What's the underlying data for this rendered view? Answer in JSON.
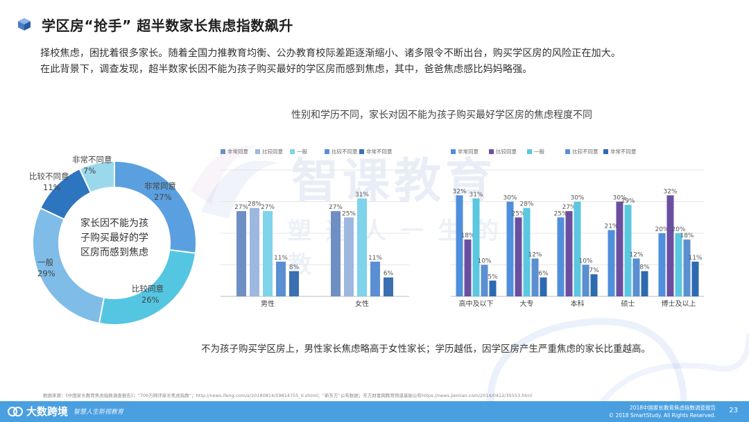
{
  "header": {
    "title": "学区房“抢手” 超半数家长焦虑指数飙升"
  },
  "intro": {
    "line1": "择校焦虑，困扰着很多家长。随着全国力推教育均衡、公办教育校际差距逐渐缩小、诸多限令不断出台，购买学区房的风险正在加大。",
    "line2": "在此背景下，调查发现，超半数家长因不能为孩子购买最好的学区房而感到焦虑，其中，爸爸焦虑感比妈妈略强。"
  },
  "watermark": {
    "main": "智课教育",
    "sub": "塑造人一生的教"
  },
  "donut": {
    "center_text": "家长因不能为孩子购买最好的学区房而感到焦虑",
    "labels": [
      {
        "name": "非常同意",
        "value": "27%"
      },
      {
        "name": "比较同意",
        "value": "26%"
      },
      {
        "name": "一般",
        "value": "29%"
      },
      {
        "name": "比较不同意",
        "value": "11%"
      },
      {
        "name": "非常不同意",
        "value": "7%"
      }
    ]
  },
  "chart_title": "性别和学历不同，家长对因不能为孩子购买最好学区房的焦虑程度不同",
  "colors": {
    "very_agree": "#6e8fc4",
    "agree": "#9db7df",
    "neutral": "#7fd3ea",
    "disagree": "#5b8fd4",
    "very_disagree": "#3a6fb0",
    "edu_very_agree": "#4f8fdc",
    "edu_agree": "#6a4fa0",
    "edu_neutral": "#5bc7e0",
    "edu_disagree": "#5a8fd0",
    "edu_very_disagree": "#2e6ab0",
    "donut_very_agree": "#5aa0e0",
    "donut_agree": "#54c6e2",
    "donut_neutral": "#7fbce8",
    "donut_disagree": "#2e75bf",
    "donut_very_disagree": "#9ad9ec",
    "footer": "#4a9fe0"
  },
  "chart_data": [
    {
      "type": "pie",
      "categories": [
        "非常同意",
        "比较同意",
        "一般",
        "比较不同意",
        "非常不同意"
      ],
      "values": [
        27,
        26,
        29,
        11,
        7
      ]
    },
    {
      "type": "bar",
      "categories": [
        "男性",
        "女性"
      ],
      "series": [
        {
          "name": "非常同意",
          "values": [
            27,
            27
          ]
        },
        {
          "name": "比较同意",
          "values": [
            28,
            25
          ]
        },
        {
          "name": "一般",
          "values": [
            27,
            31
          ]
        },
        {
          "name": "比较不同意",
          "values": [
            11,
            11
          ]
        },
        {
          "name": "非常不同意",
          "values": [
            8,
            6
          ]
        }
      ],
      "value_labels": [
        [
          "27%",
          "27%"
        ],
        [
          "28%",
          "25%"
        ],
        [
          "27%",
          "31%"
        ],
        [
          "11%",
          "11%"
        ],
        [
          "8%",
          "6%"
        ]
      ],
      "ylim": [
        0,
        40
      ]
    },
    {
      "type": "bar",
      "categories": [
        "高中及以下",
        "大专",
        "本科",
        "硕士",
        "博士及以上"
      ],
      "series": [
        {
          "name": "非常同意",
          "values": [
            32,
            30,
            25,
            21,
            20
          ]
        },
        {
          "name": "比较同意",
          "values": [
            18,
            25,
            27,
            30,
            32
          ]
        },
        {
          "name": "一般",
          "values": [
            31,
            28,
            30,
            29,
            20
          ]
        },
        {
          "name": "比较不同意",
          "values": [
            10,
            12,
            10,
            12,
            18
          ]
        },
        {
          "name": "非常不同意",
          "values": [
            5,
            6,
            7,
            8,
            11
          ]
        }
      ],
      "value_labels": [
        [
          "32%",
          "30%",
          "25%",
          "21%",
          "20%"
        ],
        [
          "18%",
          "25%",
          "27%",
          "30%",
          "32%"
        ],
        [
          "31%",
          "28%",
          "30%",
          "29%",
          "20%"
        ],
        [
          "10%",
          "12%",
          "10%",
          "12%",
          "18%"
        ],
        [
          "5%",
          "6%",
          "7%",
          "8%",
          "11%"
        ]
      ],
      "ylim": [
        0,
        40
      ]
    }
  ],
  "conclusion": "不为孩子购买学区房上，男性家长焦虑略高于女性家长；学历越低，因学区房产生严重焦虑的家长比重越高。",
  "source": "数据来源：《中国家长教育焦虑指数调查报告》；“700万网评家长焦虑指数”；http://news.ifeng.com/a/20180814/59814755_0.shtml；“新东方”公布数据；东方财富网教育频道基础公布https://news.jiemian.com/2014/0412/35553.html",
  "footer": {
    "brand": "大数跨境",
    "tag": "智慧人生新视教育",
    "report_line1": "2018中国家长教育焦虑指数调查报告",
    "report_line2": "© 2018 SmartStudy. All Rights Reserved.",
    "page": "23"
  }
}
